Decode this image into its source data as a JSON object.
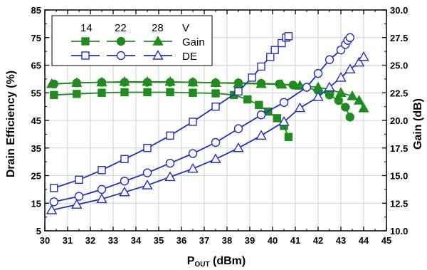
{
  "chart_data": {
    "type": "line",
    "xlabel": "P",
    "xlabel_sub": "OUT",
    "xlabel_unit": " (dBm)",
    "ylabel_left": "Drain Efficiency (%)",
    "ylabel_right": "Gain (dB)",
    "xlim": [
      30,
      45
    ],
    "ylim_left": [
      5,
      85
    ],
    "ylim_right": [
      10.0,
      30.0
    ],
    "x_ticks": [
      "30",
      "31",
      "32",
      "33",
      "34",
      "35",
      "36",
      "37",
      "38",
      "39",
      "40",
      "41",
      "42",
      "43",
      "44",
      "45"
    ],
    "y_left_ticks": [
      "5",
      "15",
      "25",
      "35",
      "45",
      "55",
      "65",
      "75",
      "85"
    ],
    "y_right_ticks": [
      "10.0",
      "12.5",
      "15.0",
      "17.5",
      "20.0",
      "22.5",
      "25.0",
      "27.5",
      "30.0"
    ],
    "grid": true,
    "colors": {
      "gain": "#1f8c1f",
      "de": "#1f2fc8"
    },
    "legend": {
      "position": "top-left",
      "column_headers": [
        "14",
        "22",
        "28",
        "V"
      ],
      "row_labels": [
        "Gain",
        "DE"
      ]
    },
    "series": [
      {
        "group": "gain",
        "vdd": "14",
        "marker": "square",
        "axis": "right",
        "x": [
          30.4,
          31.4,
          32.5,
          33.5,
          34.5,
          35.5,
          36.5,
          37.5,
          38.3,
          38.9,
          39.4,
          39.8,
          40.2,
          40.5,
          40.7
        ],
        "y": [
          22.3,
          22.4,
          22.5,
          22.55,
          22.55,
          22.55,
          22.5,
          22.45,
          22.3,
          21.9,
          21.4,
          20.8,
          20.2,
          19.5,
          18.5
        ]
      },
      {
        "group": "gain",
        "vdd": "22",
        "marker": "circle",
        "axis": "right",
        "x": [
          30.4,
          31.4,
          32.5,
          33.5,
          34.5,
          35.5,
          36.5,
          37.5,
          38.5,
          39.5,
          40.3,
          40.9,
          41.5,
          42.0,
          42.5,
          42.9,
          43.2,
          43.4
        ],
        "y": [
          23.3,
          23.4,
          23.45,
          23.45,
          23.45,
          23.45,
          23.45,
          23.4,
          23.4,
          23.35,
          23.3,
          23.2,
          23.0,
          22.7,
          22.3,
          21.8,
          21.2,
          20.3
        ]
      },
      {
        "group": "gain",
        "vdd": "28",
        "marker": "triangle",
        "axis": "right",
        "x": [
          30.3,
          31.4,
          32.5,
          33.5,
          34.5,
          35.5,
          36.5,
          37.5,
          38.5,
          39.5,
          40.4,
          41.2,
          42.0,
          42.5,
          43.0,
          43.5,
          43.8,
          44.0
        ],
        "y": [
          23.3,
          23.4,
          23.45,
          23.5,
          23.5,
          23.5,
          23.45,
          23.4,
          23.35,
          23.3,
          23.25,
          23.15,
          23.0,
          22.8,
          22.5,
          22.2,
          21.8,
          21.1
        ]
      },
      {
        "group": "de",
        "vdd": "14",
        "marker": "square",
        "axis": "left",
        "x": [
          30.4,
          31.5,
          32.5,
          33.5,
          34.5,
          35.5,
          36.5,
          37.5,
          38.5,
          39.1,
          39.5,
          39.9,
          40.1,
          40.4,
          40.6,
          40.7
        ],
        "y": [
          20.5,
          23.5,
          27,
          31,
          35,
          39.5,
          44.5,
          50,
          55.5,
          60.5,
          64.5,
          68,
          70.5,
          73,
          75,
          75.5
        ]
      },
      {
        "group": "de",
        "vdd": "22",
        "marker": "circle",
        "axis": "left",
        "x": [
          30.4,
          31.5,
          32.5,
          33.5,
          34.5,
          35.5,
          36.5,
          37.5,
          38.5,
          39.5,
          40.5,
          41.5,
          42.0,
          42.5,
          43.0,
          43.2,
          43.3,
          43.4
        ],
        "y": [
          15.5,
          17.5,
          20,
          23,
          26,
          29.5,
          33,
          37,
          42,
          47,
          51.5,
          57,
          62,
          67,
          70.5,
          72.5,
          74,
          75
        ]
      },
      {
        "group": "de",
        "vdd": "28",
        "marker": "triangle",
        "axis": "left",
        "x": [
          30.3,
          31.4,
          32.5,
          33.5,
          34.5,
          35.5,
          36.5,
          37.5,
          38.5,
          39.5,
          40.5,
          41.2,
          42.0,
          42.5,
          43.0,
          43.4,
          43.8,
          44.0
        ],
        "y": [
          12.5,
          14.5,
          16.5,
          19,
          21.5,
          24.5,
          27.5,
          31,
          35,
          39.5,
          44.5,
          49.5,
          53.5,
          57,
          60.5,
          63.5,
          66,
          68
        ]
      }
    ]
  }
}
